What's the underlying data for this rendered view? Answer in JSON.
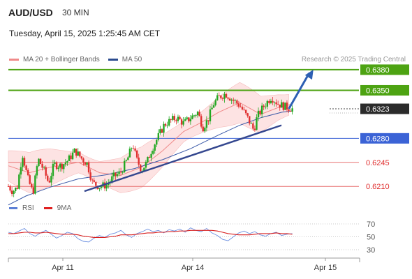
{
  "header": {
    "symbol": "AUD/USD",
    "timeframe": "30 MIN",
    "datetime": "Tuesday, April 15, 2025 1:25:45 AM CET",
    "research": "Research © 2025 Trading Central"
  },
  "legend": [
    {
      "label": "MA 20 + Bollinger Bands",
      "color": "#f08a8a"
    },
    {
      "label": "MA 50",
      "color": "#2b4b8f"
    }
  ],
  "rsi_legend": [
    {
      "label": "RSI",
      "color": "#5b7fd6"
    },
    {
      "label": "9MA",
      "color": "#e02020"
    }
  ],
  "colors": {
    "up": "#22a822",
    "down": "#e03030",
    "resistance": "#4da312",
    "support_blue": "#3b63d6",
    "support_red": "#e87070",
    "current": "#2b2b2b",
    "trendline": "#34478f",
    "band_fill": "#fde3e3"
  },
  "chart_data": [
    {
      "type": "candlestick",
      "title": "AUD/USD 30 MIN",
      "x_ticks": [
        "Apr 11",
        "Apr 14",
        "Apr 15"
      ],
      "ylim": [
        0.6195,
        0.6385
      ],
      "current_price": "0.6323",
      "levels": [
        {
          "label": "0.6380",
          "value": 0.638,
          "kind": "resistance",
          "style": "box"
        },
        {
          "label": "0.6350",
          "value": 0.635,
          "kind": "resistance",
          "style": "box"
        },
        {
          "label": "0.6280",
          "value": 0.628,
          "kind": "support_blue",
          "style": "box"
        },
        {
          "label": "0.6245",
          "value": 0.6245,
          "kind": "support_red",
          "style": "text"
        },
        {
          "label": "0.6210",
          "value": 0.621,
          "kind": "support_red",
          "style": "text"
        }
      ],
      "trendline": {
        "from": [
          0.217,
          0.6203
        ],
        "to": [
          0.779,
          0.6299
        ]
      },
      "arrow": {
        "from": [
          0.8,
          0.6323
        ],
        "to": [
          0.87,
          0.638
        ]
      },
      "price_path": [
        [
          0.0,
          0.621
        ],
        [
          0.012,
          0.6203
        ],
        [
          0.025,
          0.6208
        ],
        [
          0.04,
          0.6258
        ],
        [
          0.055,
          0.6222
        ],
        [
          0.07,
          0.62
        ],
        [
          0.085,
          0.625
        ],
        [
          0.1,
          0.6235
        ],
        [
          0.115,
          0.6215
        ],
        [
          0.13,
          0.6242
        ],
        [
          0.15,
          0.624
        ],
        [
          0.17,
          0.6248
        ],
        [
          0.19,
          0.6262
        ],
        [
          0.21,
          0.625
        ],
        [
          0.225,
          0.6243
        ],
        [
          0.24,
          0.6215
        ],
        [
          0.26,
          0.621
        ],
        [
          0.28,
          0.6212
        ],
        [
          0.3,
          0.6224
        ],
        [
          0.32,
          0.623
        ],
        [
          0.34,
          0.625
        ],
        [
          0.355,
          0.6272
        ],
        [
          0.365,
          0.625
        ],
        [
          0.38,
          0.6234
        ],
        [
          0.395,
          0.6245
        ],
        [
          0.41,
          0.6265
        ],
        [
          0.43,
          0.6285
        ],
        [
          0.445,
          0.63
        ],
        [
          0.46,
          0.6305
        ],
        [
          0.48,
          0.631
        ],
        [
          0.5,
          0.6302
        ],
        [
          0.52,
          0.631
        ],
        [
          0.54,
          0.6318
        ],
        [
          0.555,
          0.6296
        ],
        [
          0.57,
          0.6308
        ],
        [
          0.585,
          0.633
        ],
        [
          0.6,
          0.634
        ],
        [
          0.62,
          0.6345
        ],
        [
          0.64,
          0.6336
        ],
        [
          0.66,
          0.6328
        ],
        [
          0.68,
          0.6312
        ],
        [
          0.7,
          0.6292
        ],
        [
          0.71,
          0.6312
        ],
        [
          0.73,
          0.6328
        ],
        [
          0.75,
          0.634
        ],
        [
          0.77,
          0.633
        ],
        [
          0.79,
          0.6326
        ],
        [
          0.81,
          0.6323
        ]
      ],
      "ma20": [
        [
          0.0,
          0.624
        ],
        [
          0.06,
          0.623
        ],
        [
          0.12,
          0.6238
        ],
        [
          0.2,
          0.6245
        ],
        [
          0.26,
          0.623
        ],
        [
          0.32,
          0.6226
        ],
        [
          0.38,
          0.6238
        ],
        [
          0.44,
          0.6262
        ],
        [
          0.5,
          0.629
        ],
        [
          0.55,
          0.6303
        ],
        [
          0.6,
          0.6318
        ],
        [
          0.66,
          0.6332
        ],
        [
          0.72,
          0.6315
        ],
        [
          0.77,
          0.6325
        ],
        [
          0.81,
          0.633
        ]
      ],
      "ma50": [
        [
          0.0,
          0.6183
        ],
        [
          0.05,
          0.6196
        ],
        [
          0.12,
          0.6209
        ],
        [
          0.2,
          0.6221
        ],
        [
          0.28,
          0.6227
        ],
        [
          0.36,
          0.6236
        ],
        [
          0.44,
          0.6249
        ],
        [
          0.52,
          0.6265
        ],
        [
          0.6,
          0.6285
        ],
        [
          0.66,
          0.6299
        ],
        [
          0.72,
          0.631
        ],
        [
          0.78,
          0.6318
        ],
        [
          0.81,
          0.632
        ]
      ],
      "band_width": 0.0022
    },
    {
      "type": "line",
      "title": "RSI",
      "ylim": [
        30,
        70
      ],
      "yticks": [
        "70",
        "50",
        "30"
      ],
      "series": [
        {
          "name": "RSI",
          "values": [
            57,
            55,
            59,
            63,
            55,
            51,
            56,
            60,
            54,
            48,
            52,
            57,
            55,
            47,
            43,
            42,
            48,
            52,
            49,
            54,
            56,
            60,
            53,
            49,
            55,
            58,
            62,
            58,
            60,
            56,
            61,
            59,
            62,
            57,
            64,
            60,
            58,
            63,
            56,
            52,
            46,
            44,
            50,
            56,
            59,
            55,
            58,
            53,
            51,
            55,
            57,
            52,
            54,
            55
          ]
        },
        {
          "name": "9MA",
          "values": [
            55,
            55,
            56,
            57,
            57,
            56,
            56,
            57,
            56,
            55,
            54,
            54,
            54,
            53,
            51,
            50,
            49,
            49,
            49,
            50,
            51,
            53,
            53,
            53,
            54,
            55,
            56,
            56,
            57,
            57,
            58,
            58,
            59,
            59,
            60,
            60,
            60,
            60,
            60,
            59,
            57,
            55,
            54,
            53,
            53,
            53,
            54,
            55,
            55,
            55,
            56,
            55,
            55,
            54
          ]
        }
      ]
    }
  ]
}
